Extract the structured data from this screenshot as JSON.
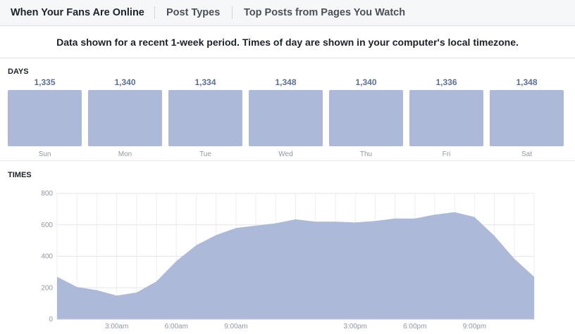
{
  "tabs": [
    {
      "label": "When Your Fans Are Online",
      "active": true
    },
    {
      "label": "Post Types",
      "active": false
    },
    {
      "label": "Top Posts from Pages You Watch",
      "active": false
    }
  ],
  "notice": "Data shown for a recent 1-week period. Times of day are shown in your computer's local timezone.",
  "days_section": {
    "label": "DAYS"
  },
  "times_section": {
    "label": "TIMES"
  },
  "colors": {
    "bar": "#adb9d8",
    "value_text": "#5b6f9b",
    "area": "#adb9d8"
  },
  "chart_data": [
    {
      "type": "bar",
      "categories": [
        "Sun",
        "Mon",
        "Tue",
        "Wed",
        "Thu",
        "Fri",
        "Sat"
      ],
      "values": [
        1335,
        1340,
        1334,
        1348,
        1340,
        1336,
        1348
      ],
      "data_labels": [
        "1,335",
        "1,340",
        "1,334",
        "1,348",
        "1,340",
        "1,336",
        "1,348"
      ],
      "title": "DAYS"
    },
    {
      "type": "area",
      "title": "TIMES",
      "ylim": [
        0,
        800
      ],
      "yticks": [
        0,
        200,
        400,
        600,
        800
      ],
      "x_hours": [
        0,
        1,
        2,
        3,
        4,
        5,
        6,
        7,
        8,
        9,
        10,
        11,
        12,
        13,
        14,
        15,
        16,
        17,
        18,
        19,
        20,
        21,
        22,
        23,
        24
      ],
      "values": [
        270,
        205,
        185,
        150,
        170,
        240,
        370,
        470,
        535,
        580,
        595,
        610,
        635,
        620,
        620,
        615,
        625,
        640,
        640,
        665,
        680,
        650,
        530,
        385,
        270
      ],
      "xtick_labels": [
        {
          "hour": 3,
          "label": "3:00am"
        },
        {
          "hour": 6,
          "label": "6:00am"
        },
        {
          "hour": 9,
          "label": "9:00am"
        },
        {
          "hour": 15,
          "label": "3:00pm"
        },
        {
          "hour": 18,
          "label": "6:00pm"
        },
        {
          "hour": 21,
          "label": "9:00pm"
        }
      ],
      "grid": true
    }
  ]
}
